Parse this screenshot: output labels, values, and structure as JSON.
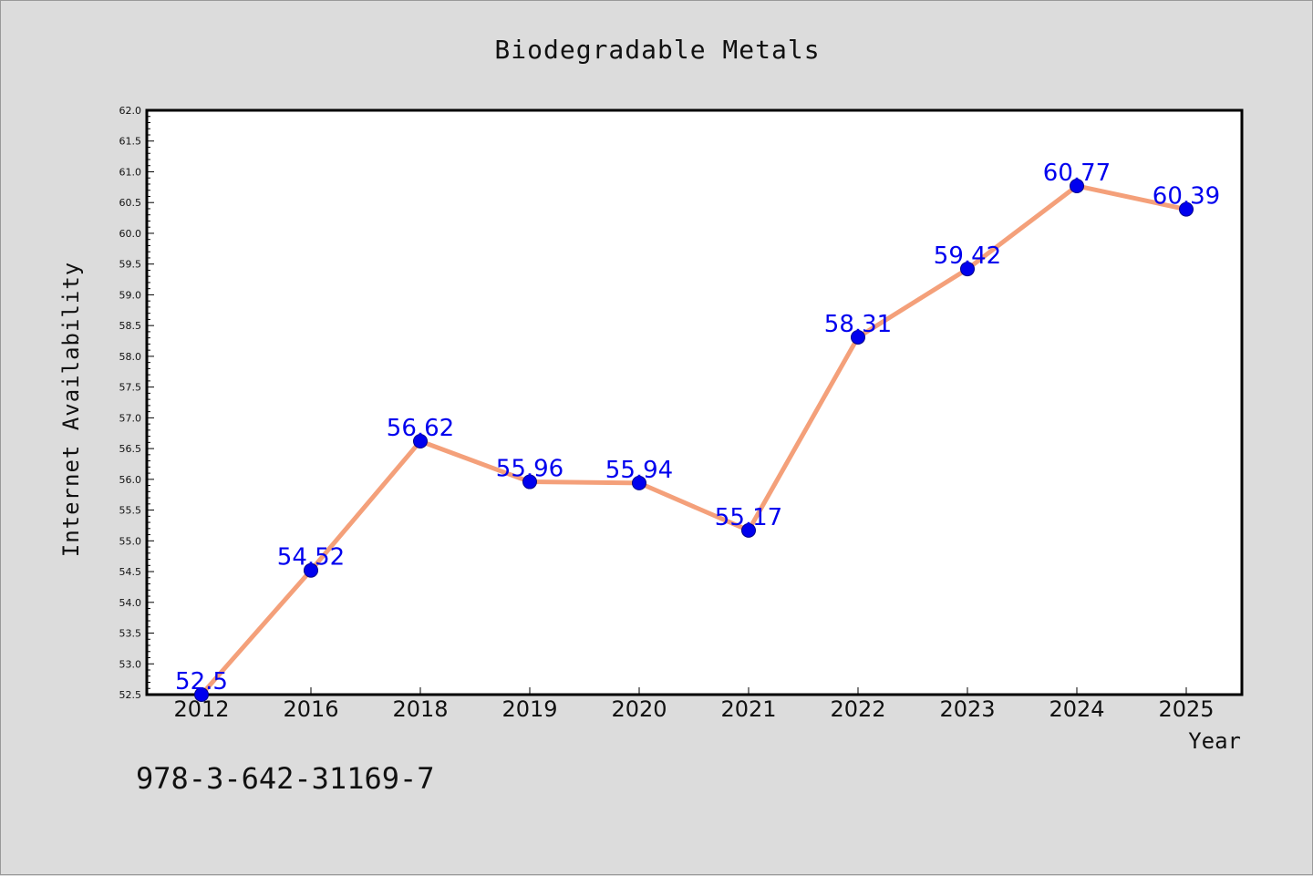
{
  "chart_data": {
    "type": "line",
    "title": "Biodegradable Metals",
    "xlabel": "Year",
    "ylabel": "Internet Availability",
    "categories": [
      "2012",
      "2016",
      "2018",
      "2019",
      "2020",
      "2021",
      "2022",
      "2023",
      "2024",
      "2025"
    ],
    "series": [
      {
        "values": [
          52.5,
          54.52,
          56.62,
          55.96,
          55.94,
          55.17,
          58.31,
          59.42,
          60.77,
          60.39
        ]
      }
    ],
    "data_labels": [
      "52.5",
      "54.52",
      "56.62",
      "55.96",
      "55.94",
      "55.17",
      "58.31",
      "59.42",
      "60.77",
      "60.39"
    ],
    "ylim": [
      52.5,
      62.0
    ],
    "yticks": [
      "52.5",
      "53.0",
      "53.5",
      "54.0",
      "54.5",
      "55.0",
      "55.5",
      "56.0",
      "56.5",
      "57.0",
      "57.5",
      "58.0",
      "58.5",
      "59.0",
      "59.5",
      "60.0",
      "60.5",
      "61.0",
      "61.5",
      "62.0"
    ],
    "grid": false,
    "colors": {
      "line": "#f4a07a",
      "marker": "#0000ee",
      "label": "#0000ee"
    }
  },
  "footer": {
    "isbn": "978-3-642-31169-7"
  }
}
